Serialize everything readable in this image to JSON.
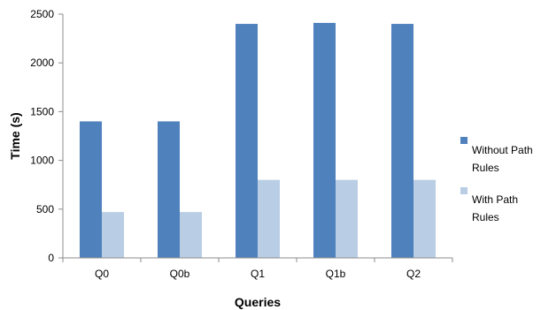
{
  "chart_data": {
    "type": "bar",
    "categories": [
      "Q0",
      "Q0b",
      "Q1",
      "Q1b",
      "Q2"
    ],
    "series": [
      {
        "name": "Without Path Rules",
        "name_lines": [
          "Without Path",
          "Rules"
        ],
        "color": "#4f81bd",
        "values": [
          1400,
          1400,
          2400,
          2410,
          2400
        ]
      },
      {
        "name": "With Path Rules",
        "name_lines": [
          "With Path",
          "Rules"
        ],
        "color": "#b9cde5",
        "values": [
          470,
          470,
          800,
          800,
          800
        ]
      }
    ],
    "xlabel": "Queries",
    "ylabel": "Time (s)",
    "ylim": [
      0,
      2500
    ],
    "yticks": [
      0,
      500,
      1000,
      1500,
      2000,
      2500
    ],
    "grid": false,
    "legend_position": "right"
  }
}
